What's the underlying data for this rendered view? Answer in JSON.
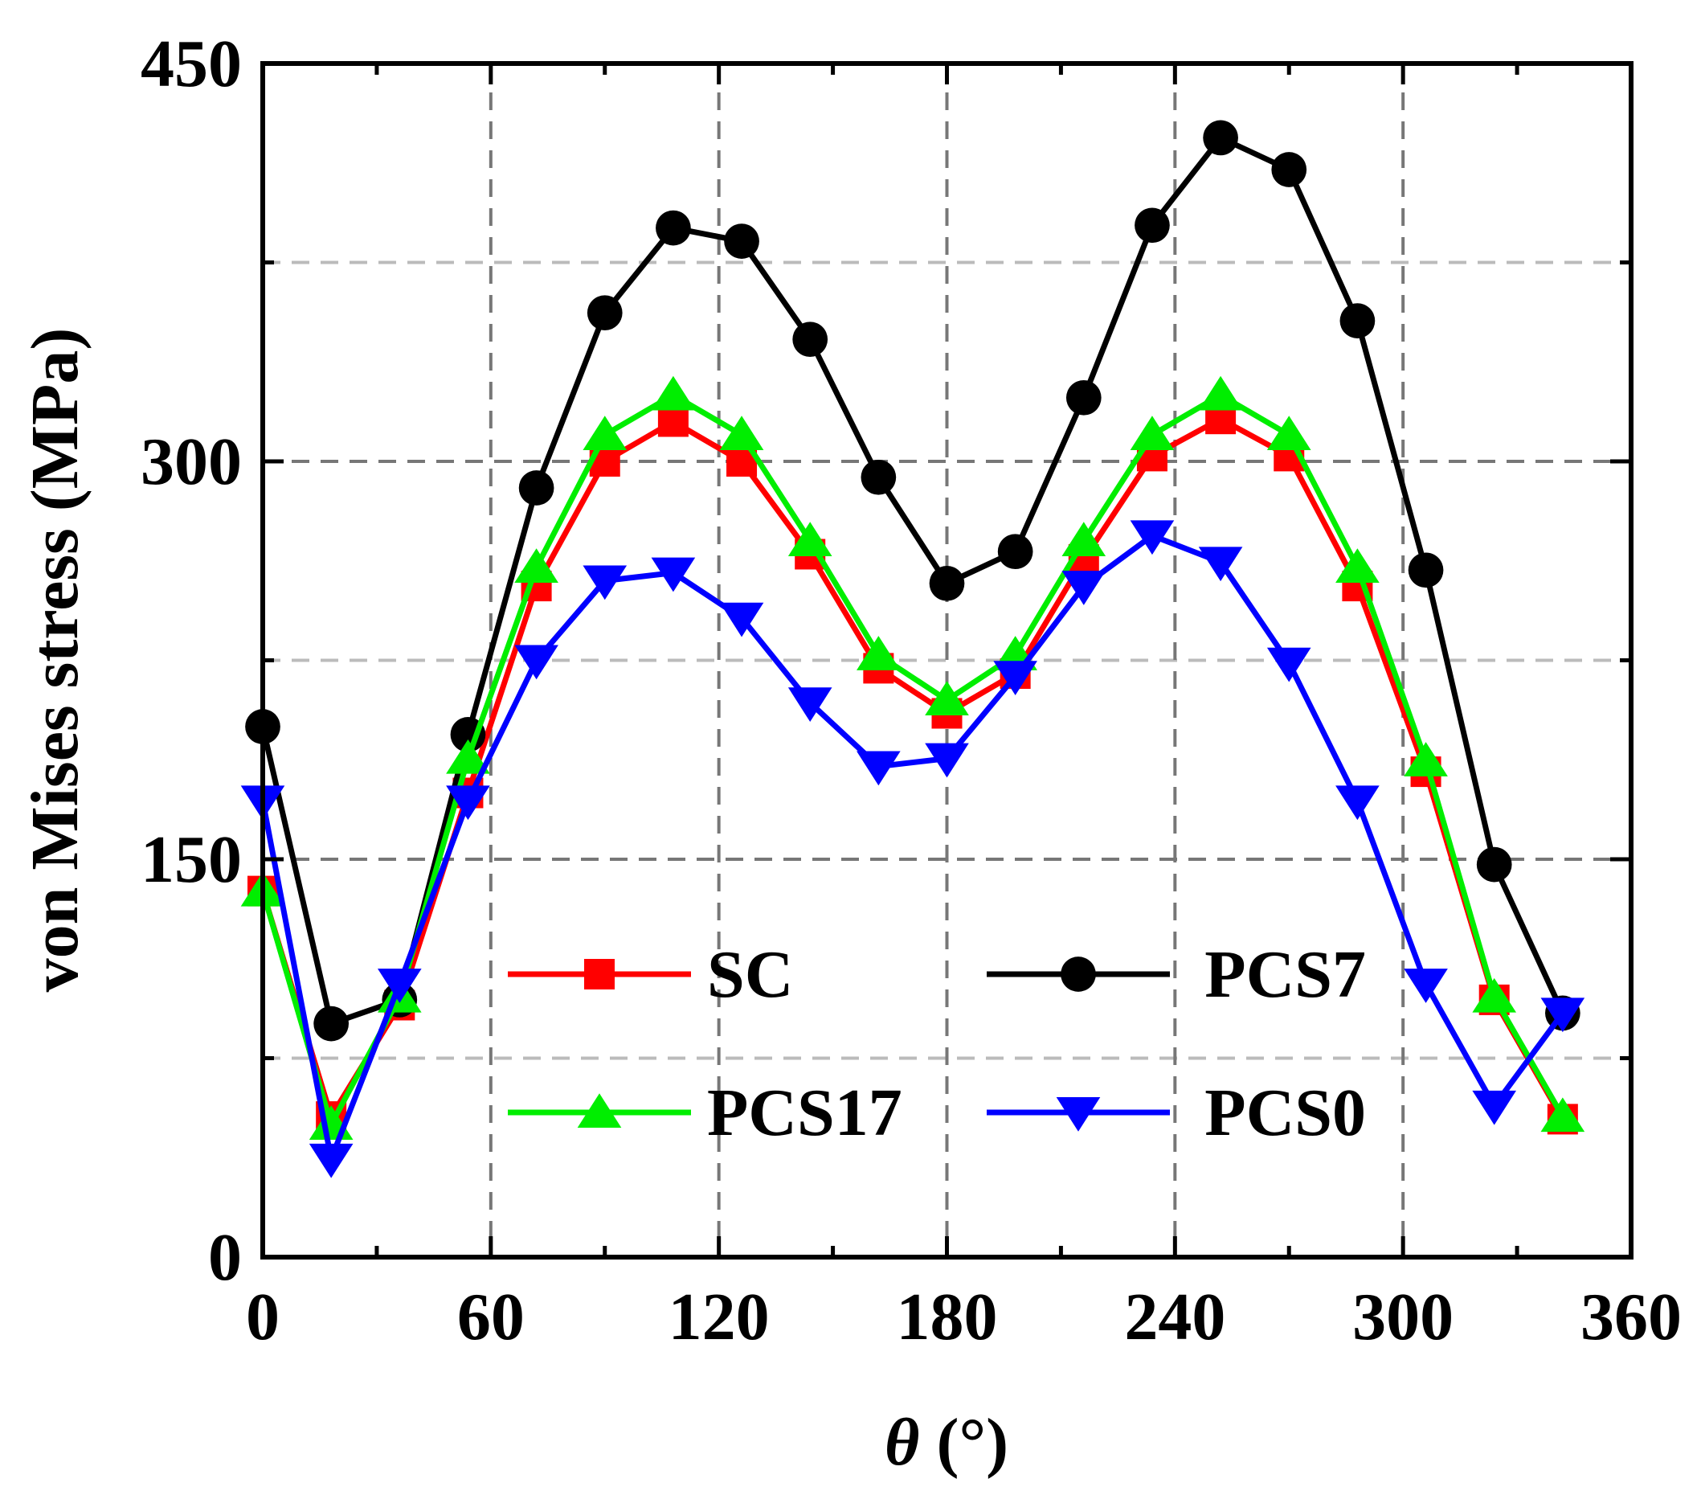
{
  "chart_data": {
    "type": "line",
    "xlabel_symbol": "θ",
    "xlabel_unit": " (°)",
    "ylabel": "von Mises stress (MPa)",
    "xlim": [
      0,
      360
    ],
    "ylim": [
      0,
      450
    ],
    "xticks": [
      0,
      60,
      120,
      180,
      240,
      300,
      360
    ],
    "yticks": [
      0,
      150,
      300,
      450
    ],
    "y_grid_lines": [
      75,
      150,
      225,
      300,
      375
    ],
    "x_grid_lines": [
      60,
      120,
      180,
      240,
      300
    ],
    "legend_position": "lower-center",
    "x": [
      0,
      18,
      36,
      54,
      72,
      90,
      108,
      126,
      144,
      162,
      180,
      198,
      216,
      234,
      252,
      270,
      288,
      306,
      324,
      342
    ],
    "series": [
      {
        "name": "SC",
        "color": "#ff0000",
        "marker": "square",
        "values": [
          138,
          53,
          95,
          175,
          253,
          300,
          315,
          300,
          265,
          222,
          205,
          220,
          263,
          302,
          316,
          302,
          253,
          183,
          97,
          52
        ]
      },
      {
        "name": "PCS7",
        "color": "#000000",
        "marker": "circle",
        "values": [
          200,
          88,
          97,
          197,
          290,
          356,
          388,
          383,
          346,
          294,
          254,
          266,
          324,
          389,
          422,
          410,
          353,
          259,
          148,
          92
        ]
      },
      {
        "name": "PCS17",
        "color": "#00ee00",
        "marker": "triangle-up",
        "values": [
          138,
          50,
          98,
          188,
          260,
          310,
          325,
          310,
          270,
          227,
          210,
          227,
          270,
          310,
          325,
          310,
          260,
          187,
          98,
          53
        ]
      },
      {
        "name": "PCS0",
        "color": "#0000ff",
        "marker": "triangle-down",
        "values": [
          172,
          37,
          103,
          172,
          225,
          255,
          258,
          241,
          209,
          185,
          188,
          219,
          253,
          272,
          262,
          224,
          172,
          103,
          57,
          92
        ]
      }
    ]
  }
}
